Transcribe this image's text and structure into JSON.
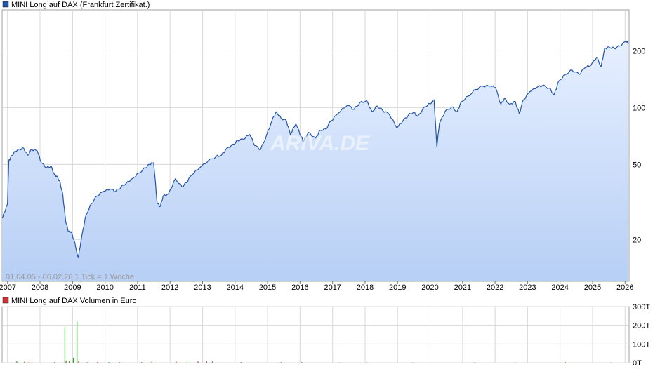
{
  "chart_data": [
    {
      "type": "area",
      "title": "MINI Long auf DAX  (Frankfurt Zertifikat.)",
      "legend": [
        {
          "name": "MINI Long auf DAX  (Frankfurt Zertifikat.)",
          "color": "#2255aa"
        }
      ],
      "y_scale": "log",
      "ylim": [
        12,
        330
      ],
      "y_ticks": [
        {
          "value": 20,
          "label": "20"
        },
        {
          "value": 50,
          "label": "50"
        },
        {
          "value": 100,
          "label": "100"
        },
        {
          "value": 200,
          "label": "200"
        }
      ],
      "x_ticks": [
        "2007",
        "2008",
        "2009",
        "2010",
        "2011",
        "2012",
        "2013",
        "2014",
        "2015",
        "2016",
        "2017",
        "2018",
        "2019",
        "2020",
        "2021",
        "2022",
        "2023",
        "2024",
        "2025",
        "2026"
      ],
      "xlim": [
        "2006-11-01",
        "2026-02-15"
      ],
      "grid": true,
      "info_text": "01.04.05 - 06.02.26    1 Tick = 1 Woche",
      "watermark": "ARIVA.DE",
      "series": [
        {
          "name": "MINI Long auf DAX",
          "color": "#2255aa",
          "fill_top": "#e6efff",
          "fill_bottom": "#b7cff5",
          "points": [
            [
              "2006-11-01",
              26
            ],
            [
              "2006-12-01",
              28
            ],
            [
              "2007-01-01",
              31
            ],
            [
              "2007-01-15",
              52
            ],
            [
              "2007-02-01",
              54
            ],
            [
              "2007-03-15",
              58
            ],
            [
              "2007-05-01",
              60
            ],
            [
              "2007-07-01",
              61
            ],
            [
              "2007-08-15",
              56
            ],
            [
              "2007-10-01",
              60
            ],
            [
              "2007-12-01",
              59
            ],
            [
              "2008-01-15",
              51
            ],
            [
              "2008-03-15",
              48
            ],
            [
              "2008-05-01",
              49
            ],
            [
              "2008-06-15",
              44
            ],
            [
              "2008-07-15",
              43
            ],
            [
              "2008-08-15",
              40
            ],
            [
              "2008-09-15",
              34
            ],
            [
              "2008-10-15",
              25
            ],
            [
              "2008-11-15",
              22
            ],
            [
              "2008-12-15",
              22
            ],
            [
              "2009-01-15",
              20
            ],
            [
              "2009-03-06",
              16
            ],
            [
              "2009-04-15",
              21
            ],
            [
              "2009-06-01",
              27
            ],
            [
              "2009-08-01",
              31
            ],
            [
              "2009-10-01",
              34
            ],
            [
              "2009-12-15",
              36
            ],
            [
              "2010-03-01",
              37
            ],
            [
              "2010-05-01",
              36
            ],
            [
              "2010-07-01",
              38
            ],
            [
              "2010-09-01",
              40
            ],
            [
              "2010-11-01",
              42
            ],
            [
              "2011-01-15",
              45
            ],
            [
              "2011-04-01",
              48
            ],
            [
              "2011-05-15",
              50
            ],
            [
              "2011-07-01",
              51
            ],
            [
              "2011-08-10",
              31
            ],
            [
              "2011-09-15",
              30
            ],
            [
              "2011-10-15",
              34
            ],
            [
              "2011-12-15",
              35
            ],
            [
              "2012-03-01",
              42
            ],
            [
              "2012-05-15",
              38
            ],
            [
              "2012-07-01",
              40
            ],
            [
              "2012-09-01",
              44
            ],
            [
              "2012-12-01",
              48
            ],
            [
              "2013-03-01",
              52
            ],
            [
              "2013-06-01",
              55
            ],
            [
              "2013-08-01",
              56
            ],
            [
              "2013-10-01",
              61
            ],
            [
              "2013-12-15",
              64
            ],
            [
              "2014-02-01",
              67
            ],
            [
              "2014-04-01",
              68
            ],
            [
              "2014-06-15",
              72
            ],
            [
              "2014-08-10",
              63
            ],
            [
              "2014-10-15",
              60
            ],
            [
              "2014-12-15",
              70
            ],
            [
              "2015-03-01",
              88
            ],
            [
              "2015-04-10",
              95
            ],
            [
              "2015-06-01",
              88
            ],
            [
              "2015-08-01",
              85
            ],
            [
              "2015-09-15",
              72
            ],
            [
              "2015-11-15",
              82
            ],
            [
              "2016-01-15",
              70
            ],
            [
              "2016-02-10",
              66
            ],
            [
              "2016-04-01",
              74
            ],
            [
              "2016-06-24",
              69
            ],
            [
              "2016-08-15",
              76
            ],
            [
              "2016-10-15",
              77
            ],
            [
              "2016-12-15",
              85
            ],
            [
              "2017-03-01",
              93
            ],
            [
              "2017-06-15",
              103
            ],
            [
              "2017-09-01",
              98
            ],
            [
              "2017-11-01",
              106
            ],
            [
              "2018-01-20",
              109
            ],
            [
              "2018-03-20",
              95
            ],
            [
              "2018-05-15",
              102
            ],
            [
              "2018-07-15",
              97
            ],
            [
              "2018-10-01",
              92
            ],
            [
              "2018-12-25",
              78
            ],
            [
              "2019-03-01",
              85
            ],
            [
              "2019-05-01",
              91
            ],
            [
              "2019-07-01",
              95
            ],
            [
              "2019-08-15",
              90
            ],
            [
              "2019-11-01",
              101
            ],
            [
              "2019-12-31",
              105
            ],
            [
              "2020-02-15",
              110
            ],
            [
              "2020-03-18",
              62
            ],
            [
              "2020-04-15",
              82
            ],
            [
              "2020-06-15",
              95
            ],
            [
              "2020-09-01",
              101
            ],
            [
              "2020-11-01",
              95
            ],
            [
              "2020-12-15",
              107
            ],
            [
              "2021-03-01",
              115
            ],
            [
              "2021-06-01",
              125
            ],
            [
              "2021-08-15",
              130
            ],
            [
              "2021-11-15",
              130
            ],
            [
              "2022-01-05",
              128
            ],
            [
              "2022-03-07",
              104
            ],
            [
              "2022-04-15",
              112
            ],
            [
              "2022-06-15",
              104
            ],
            [
              "2022-08-15",
              108
            ],
            [
              "2022-09-29",
              93
            ],
            [
              "2022-11-15",
              110
            ],
            [
              "2023-02-01",
              122
            ],
            [
              "2023-04-15",
              128
            ],
            [
              "2023-06-15",
              131
            ],
            [
              "2023-09-01",
              127
            ],
            [
              "2023-10-27",
              117
            ],
            [
              "2023-12-15",
              138
            ],
            [
              "2024-03-01",
              150
            ],
            [
              "2024-05-15",
              158
            ],
            [
              "2024-08-05",
              150
            ],
            [
              "2024-10-01",
              162
            ],
            [
              "2024-12-15",
              168
            ],
            [
              "2025-02-15",
              185
            ],
            [
              "2025-04-07",
              165
            ],
            [
              "2025-05-15",
              205
            ],
            [
              "2025-07-01",
              210
            ],
            [
              "2025-09-01",
              206
            ],
            [
              "2025-11-01",
              212
            ],
            [
              "2026-01-15",
              225
            ],
            [
              "2026-02-06",
              218
            ]
          ]
        }
      ]
    },
    {
      "type": "bar",
      "title": "MINI Long auf DAX  Volumen in Euro",
      "legend": [
        {
          "name": "MINI Long auf DAX  Volumen in Euro",
          "color": "#cc3333"
        }
      ],
      "ylim": [
        0,
        300
      ],
      "y_ticks": [
        {
          "value": 0,
          "label": "0T"
        },
        {
          "value": 100,
          "label": "100T"
        },
        {
          "value": 200,
          "label": "200T"
        },
        {
          "value": 300,
          "label": "300T"
        }
      ],
      "grid": true,
      "bars": [
        {
          "x": "2007-04-15",
          "value": 8,
          "color": "#22aa22"
        },
        {
          "x": "2007-07-10",
          "value": 5,
          "color": "#22aa22"
        },
        {
          "x": "2007-09-01",
          "value": 3,
          "color": "#cc3333"
        },
        {
          "x": "2008-06-15",
          "value": 4,
          "color": "#cc3333"
        },
        {
          "x": "2008-10-06",
          "value": 190,
          "color": "#22aa22"
        },
        {
          "x": "2008-10-20",
          "value": 12,
          "color": "#cc3333"
        },
        {
          "x": "2008-11-25",
          "value": 8,
          "color": "#22aa22"
        },
        {
          "x": "2009-01-10",
          "value": 25,
          "color": "#22aa22"
        },
        {
          "x": "2009-02-20",
          "value": 220,
          "color": "#22aa22"
        },
        {
          "x": "2009-03-10",
          "value": 10,
          "color": "#cc3333"
        },
        {
          "x": "2009-06-20",
          "value": 4,
          "color": "#22aa22"
        },
        {
          "x": "2009-10-10",
          "value": 5,
          "color": "#cc3333"
        },
        {
          "x": "2010-02-15",
          "value": 3,
          "color": "#22aa22"
        },
        {
          "x": "2010-06-10",
          "value": 3,
          "color": "#cc3333"
        },
        {
          "x": "2011-02-15",
          "value": 3,
          "color": "#22aa22"
        },
        {
          "x": "2011-06-10",
          "value": 6,
          "color": "#cc3333"
        },
        {
          "x": "2012-03-10",
          "value": 6,
          "color": "#cc3333"
        },
        {
          "x": "2012-07-10",
          "value": 4,
          "color": "#22aa22"
        },
        {
          "x": "2012-11-10",
          "value": 6,
          "color": "#cc3333"
        },
        {
          "x": "2013-02-15",
          "value": 7,
          "color": "#cc3333"
        },
        {
          "x": "2013-04-20",
          "value": 6,
          "color": "#22aa22"
        },
        {
          "x": "2014-03-10",
          "value": 3,
          "color": "#22aa22"
        },
        {
          "x": "2015-06-01",
          "value": 3,
          "color": "#cc3333"
        },
        {
          "x": "2016-01-20",
          "value": 3,
          "color": "#22aa22"
        },
        {
          "x": "2017-03-15",
          "value": 2,
          "color": "#22aa22"
        },
        {
          "x": "2018-01-15",
          "value": 2,
          "color": "#cc3333"
        },
        {
          "x": "2019-06-15",
          "value": 2,
          "color": "#22aa22"
        },
        {
          "x": "2021-05-15",
          "value": 2,
          "color": "#cc3333"
        },
        {
          "x": "2022-08-15",
          "value": 2,
          "color": "#22aa22"
        },
        {
          "x": "2024-03-01",
          "value": 3,
          "color": "#22aa22"
        },
        {
          "x": "2025-08-01",
          "value": 2,
          "color": "#cc3333"
        }
      ]
    }
  ]
}
